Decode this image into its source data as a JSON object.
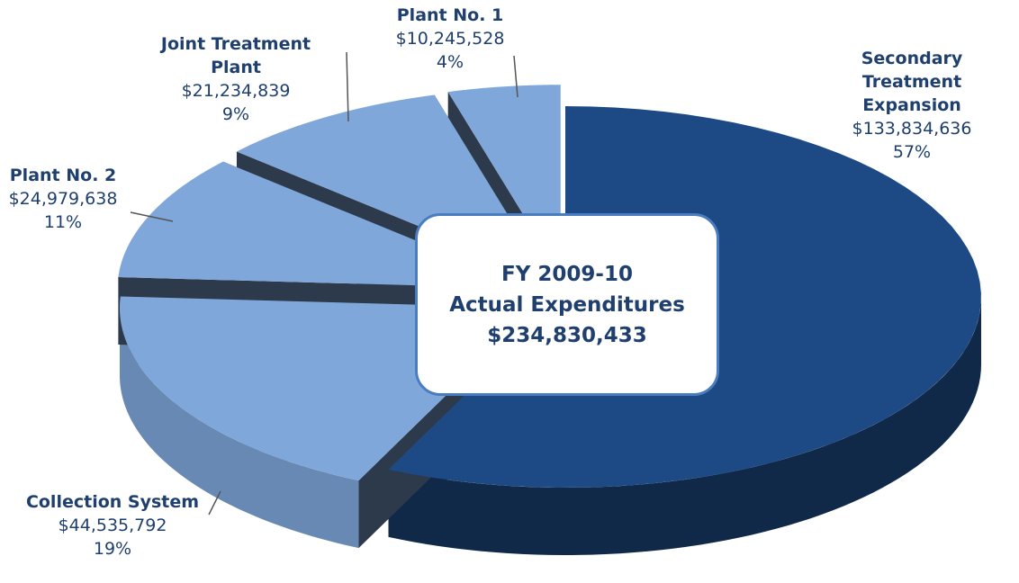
{
  "chart_data": {
    "type": "pie",
    "categories": [
      "Secondary Treatment Expansion",
      "Collection System",
      "Plant No. 2",
      "Joint Treatment Plant",
      "Plant No. 1"
    ],
    "values": [
      133834636,
      44535792,
      24979638,
      21234839,
      10245528
    ],
    "value_labels": [
      "$133,834,636",
      "$44,535,792",
      "$24,979,638",
      "$21,234,839",
      "$10,245,528"
    ],
    "percent_labels": [
      "57%",
      "19%",
      "11%",
      "9%",
      "4%"
    ],
    "colors": [
      "#1d4a84",
      "#7fa7da",
      "#7fa7da",
      "#7fa7da",
      "#7fa7da"
    ],
    "center_label": [
      "FY 2009-10",
      "Actual Expenditures",
      "$234,830,433"
    ]
  }
}
